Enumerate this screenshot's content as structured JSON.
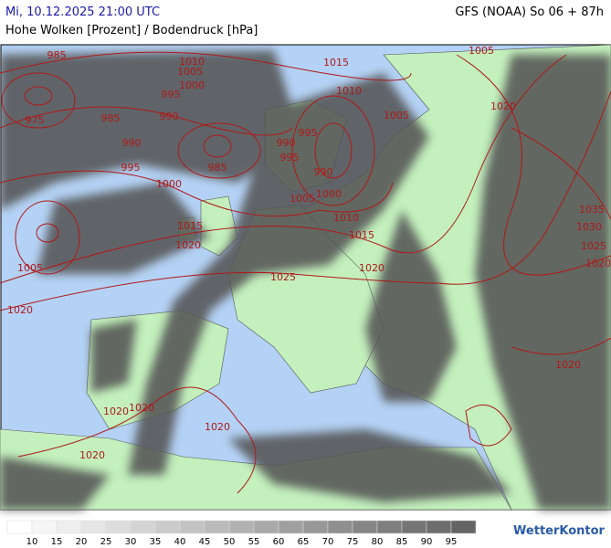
{
  "header": {
    "left": "Mi, 10.12.2025 21:00 UTC",
    "right": "GFS (NOAA) So 06 + 87h",
    "subtitle": "Hohe Wolken [Prozent] / Bodendruck [hPa]"
  },
  "isobar_labels": [
    "985",
    "1010",
    "1015",
    "1005",
    "1005",
    "1000",
    "995",
    "1010",
    "975",
    "985",
    "990",
    "995",
    "1005",
    "1020",
    "990",
    "990",
    "985",
    "995",
    "990",
    "995",
    "1000",
    "1005",
    "1000",
    "1010",
    "1035",
    "1015",
    "1015",
    "1030",
    "1020",
    "1025",
    "1005",
    "1020",
    "1020",
    "1025",
    "1020",
    "1020",
    "1020",
    "1020",
    "1020",
    "1020"
  ],
  "legend": {
    "labels": [
      10,
      15,
      20,
      25,
      30,
      35,
      40,
      45,
      50,
      55,
      60,
      65,
      70,
      75,
      80,
      85,
      90,
      95
    ]
  },
  "logo": "WetterKontor"
}
